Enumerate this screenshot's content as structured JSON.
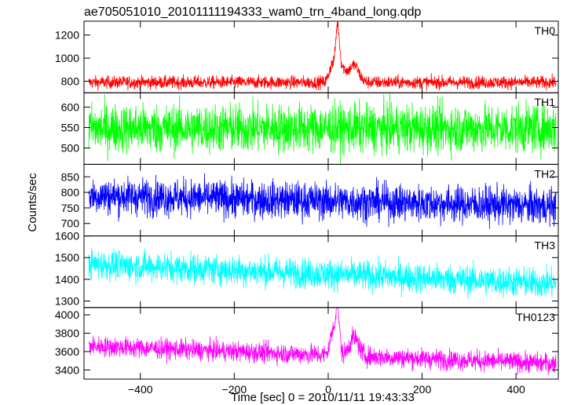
{
  "chart_data": {
    "type": "line",
    "title": "ae705051010_20101111194333_wam0_trn_4band_long.qdp",
    "xlabel": "Time [sec] 0 = 2010/11/11 19:43:33",
    "ylabel": "Counts/sec",
    "xlim": [
      -520,
      490
    ],
    "xticks": [
      -400,
      -200,
      0,
      200,
      400
    ],
    "x_data_range": [
      -510,
      485
    ],
    "grid": false,
    "panels": [
      {
        "name": "TH0",
        "color": "#ff0000",
        "ylim": [
          700,
          1320
        ],
        "yticks": [
          800,
          1000,
          1200
        ],
        "baseline": 790,
        "noise": 28,
        "features": [
          {
            "x": 8,
            "amplitude": 150,
            "width": 6
          },
          {
            "x": 20,
            "amplitude": 430,
            "width": 4
          },
          {
            "x": 30,
            "amplitude": 120,
            "width": 8
          },
          {
            "x": 55,
            "amplitude": 150,
            "width": 10
          }
        ]
      },
      {
        "name": "TH1",
        "color": "#00ff00",
        "ylim": [
          460,
          635
        ],
        "yticks": [
          500,
          550,
          600
        ],
        "baseline": 548,
        "noise": 30,
        "features": []
      },
      {
        "name": "TH2",
        "color": "#0000ff",
        "ylim": [
          660,
          890
        ],
        "yticks": [
          700,
          750,
          800,
          850
        ],
        "baseline": 790,
        "trend_end": 755,
        "noise": 30,
        "features": []
      },
      {
        "name": "TH3",
        "color": "#00ffff",
        "ylim": [
          1270,
          1600
        ],
        "yticks": [
          1300,
          1400,
          1500,
          1600
        ],
        "baseline": 1470,
        "trend_end": 1380,
        "noise": 35,
        "features": []
      },
      {
        "name": "TH0123",
        "color": "#ff00ff",
        "ylim": [
          3300,
          4080
        ],
        "yticks": [
          3400,
          3600,
          3800,
          4000
        ],
        "baseline": 3660,
        "trend_end": 3470,
        "noise": 55,
        "features": [
          {
            "x": 10,
            "amplitude": 250,
            "width": 6
          },
          {
            "x": 20,
            "amplitude": 500,
            "width": 4
          },
          {
            "x": 55,
            "amplitude": 200,
            "width": 10
          }
        ]
      }
    ]
  }
}
